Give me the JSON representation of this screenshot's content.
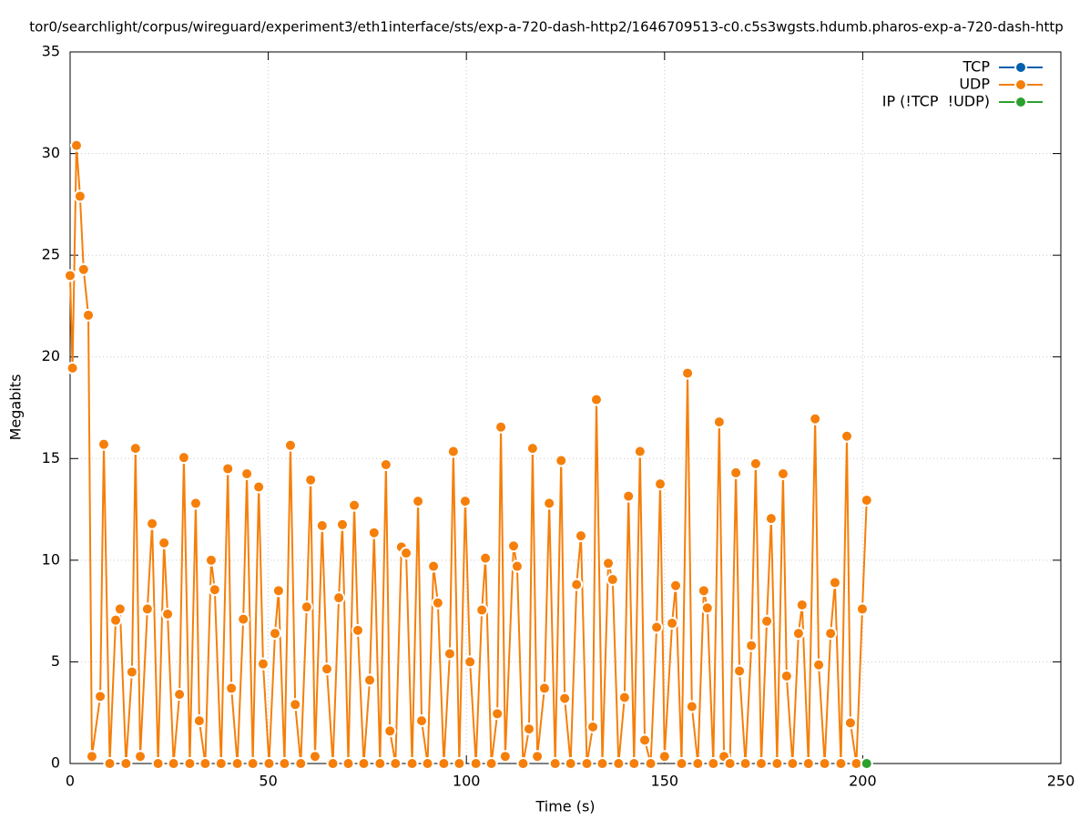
{
  "chart_data": {
    "type": "line",
    "title": "tor0/searchlight/corpus/wireguard/experiment3/eth1interface/sts/exp-a-720-dash-http2/1646709513-c0.c5s3wgsts.hdumb.pharos-exp-a-720-dash-http",
    "x_label": "Time (s)",
    "y_label": "Megabits",
    "xlim": [
      0,
      250
    ],
    "xticks": [
      0,
      50,
      100,
      150,
      200,
      250
    ],
    "ylim": [
      0,
      35
    ],
    "yticks": [
      0,
      5,
      10,
      15,
      20,
      25,
      30,
      35
    ],
    "grid": true,
    "legend": "top-right",
    "series": [
      {
        "name": "TCP",
        "color": "#0060ad",
        "x": [],
        "values": []
      },
      {
        "name": "UDP",
        "color": "#f57f0a",
        "x": [
          0,
          0.6,
          1.6,
          2.5,
          3.4,
          4.6,
          5.5,
          7.6,
          8.5,
          10,
          11.5,
          12.6,
          14.1,
          15.6,
          16.5,
          17.7,
          19.5,
          20.7,
          22.2,
          23.7,
          24.6,
          26.1,
          27.6,
          28.7,
          30.2,
          31.7,
          32.6,
          34.1,
          35.6,
          36.5,
          38.1,
          39.8,
          40.7,
          42.2,
          43.7,
          44.6,
          46.1,
          47.6,
          48.7,
          50.2,
          51.7,
          52.6,
          54.1,
          55.6,
          56.8,
          58.2,
          59.7,
          60.7,
          61.8,
          63.6,
          64.8,
          66.3,
          67.8,
          68.7,
          70.2,
          71.7,
          72.6,
          74.1,
          75.6,
          76.7,
          78.2,
          79.7,
          80.7,
          82.1,
          83.6,
          84.8,
          86.3,
          87.8,
          88.7,
          90.2,
          91.7,
          92.8,
          94.3,
          95.8,
          96.7,
          98.2,
          99.7,
          100.9,
          102.4,
          103.9,
          104.8,
          106.3,
          107.8,
          108.7,
          109.8,
          111.9,
          112.8,
          114.3,
          115.8,
          116.7,
          117.9,
          119.7,
          120.9,
          122.4,
          123.9,
          124.8,
          126.3,
          127.8,
          128.9,
          130.4,
          131.9,
          132.8,
          134.3,
          135.8,
          136.9,
          138.4,
          139.9,
          140.9,
          142.3,
          143.8,
          145,
          146.5,
          148,
          148.9,
          150,
          151.9,
          152.8,
          154.3,
          155.8,
          156.9,
          158.4,
          159.9,
          160.8,
          162.3,
          163.8,
          165,
          166.5,
          168,
          168.9,
          170.4,
          171.9,
          173,
          174.4,
          175.8,
          176.9,
          178.4,
          179.9,
          180.8,
          182.3,
          183.8,
          184.7,
          186.3,
          188,
          188.9,
          190.4,
          191.9,
          193,
          194.5,
          196,
          196.9,
          198.4,
          199.9,
          201
        ],
        "values": [
          24,
          19.45,
          30.4,
          27.9,
          24.3,
          22.05,
          0.35,
          3.3,
          15.7,
          0,
          7.05,
          7.6,
          0,
          4.5,
          15.5,
          0.35,
          7.6,
          11.8,
          0,
          10.85,
          7.35,
          0,
          3.4,
          15.05,
          0,
          12.8,
          2.1,
          0,
          10,
          8.55,
          0,
          14.5,
          3.7,
          0,
          7.1,
          14.25,
          0,
          13.6,
          4.9,
          0,
          6.4,
          8.5,
          0,
          15.65,
          2.9,
          0,
          7.7,
          13.95,
          0.35,
          11.7,
          4.65,
          0,
          8.15,
          11.75,
          0,
          12.7,
          6.55,
          0,
          4.1,
          11.35,
          0,
          14.7,
          1.6,
          0,
          10.65,
          10.35,
          0,
          12.9,
          2.1,
          0,
          9.7,
          7.9,
          0,
          5.4,
          15.35,
          0,
          12.9,
          5,
          0,
          7.55,
          10.1,
          0,
          2.45,
          16.55,
          0.35,
          10.7,
          9.7,
          0,
          1.7,
          15.5,
          0.35,
          3.7,
          12.8,
          0,
          14.9,
          3.2,
          0,
          8.8,
          11.2,
          0,
          1.8,
          17.9,
          0,
          9.85,
          9.05,
          0,
          3.25,
          13.15,
          0,
          15.35,
          1.15,
          0,
          6.7,
          13.75,
          0.35,
          6.9,
          8.75,
          0,
          19.2,
          2.8,
          0,
          8.5,
          7.65,
          0,
          16.8,
          0.35,
          0,
          14.3,
          4.55,
          0,
          5.8,
          14.75,
          0,
          7,
          12.05,
          0,
          14.25,
          4.3,
          0,
          6.4,
          7.8,
          0,
          16.95,
          4.85,
          0,
          6.4,
          8.9,
          0,
          16.1,
          2,
          0,
          7.6,
          12.95
        ]
      },
      {
        "name": "IP (!TCP  !UDP)",
        "color": "#2ca02c",
        "x": [
          201
        ],
        "values": [
          0
        ]
      }
    ]
  }
}
